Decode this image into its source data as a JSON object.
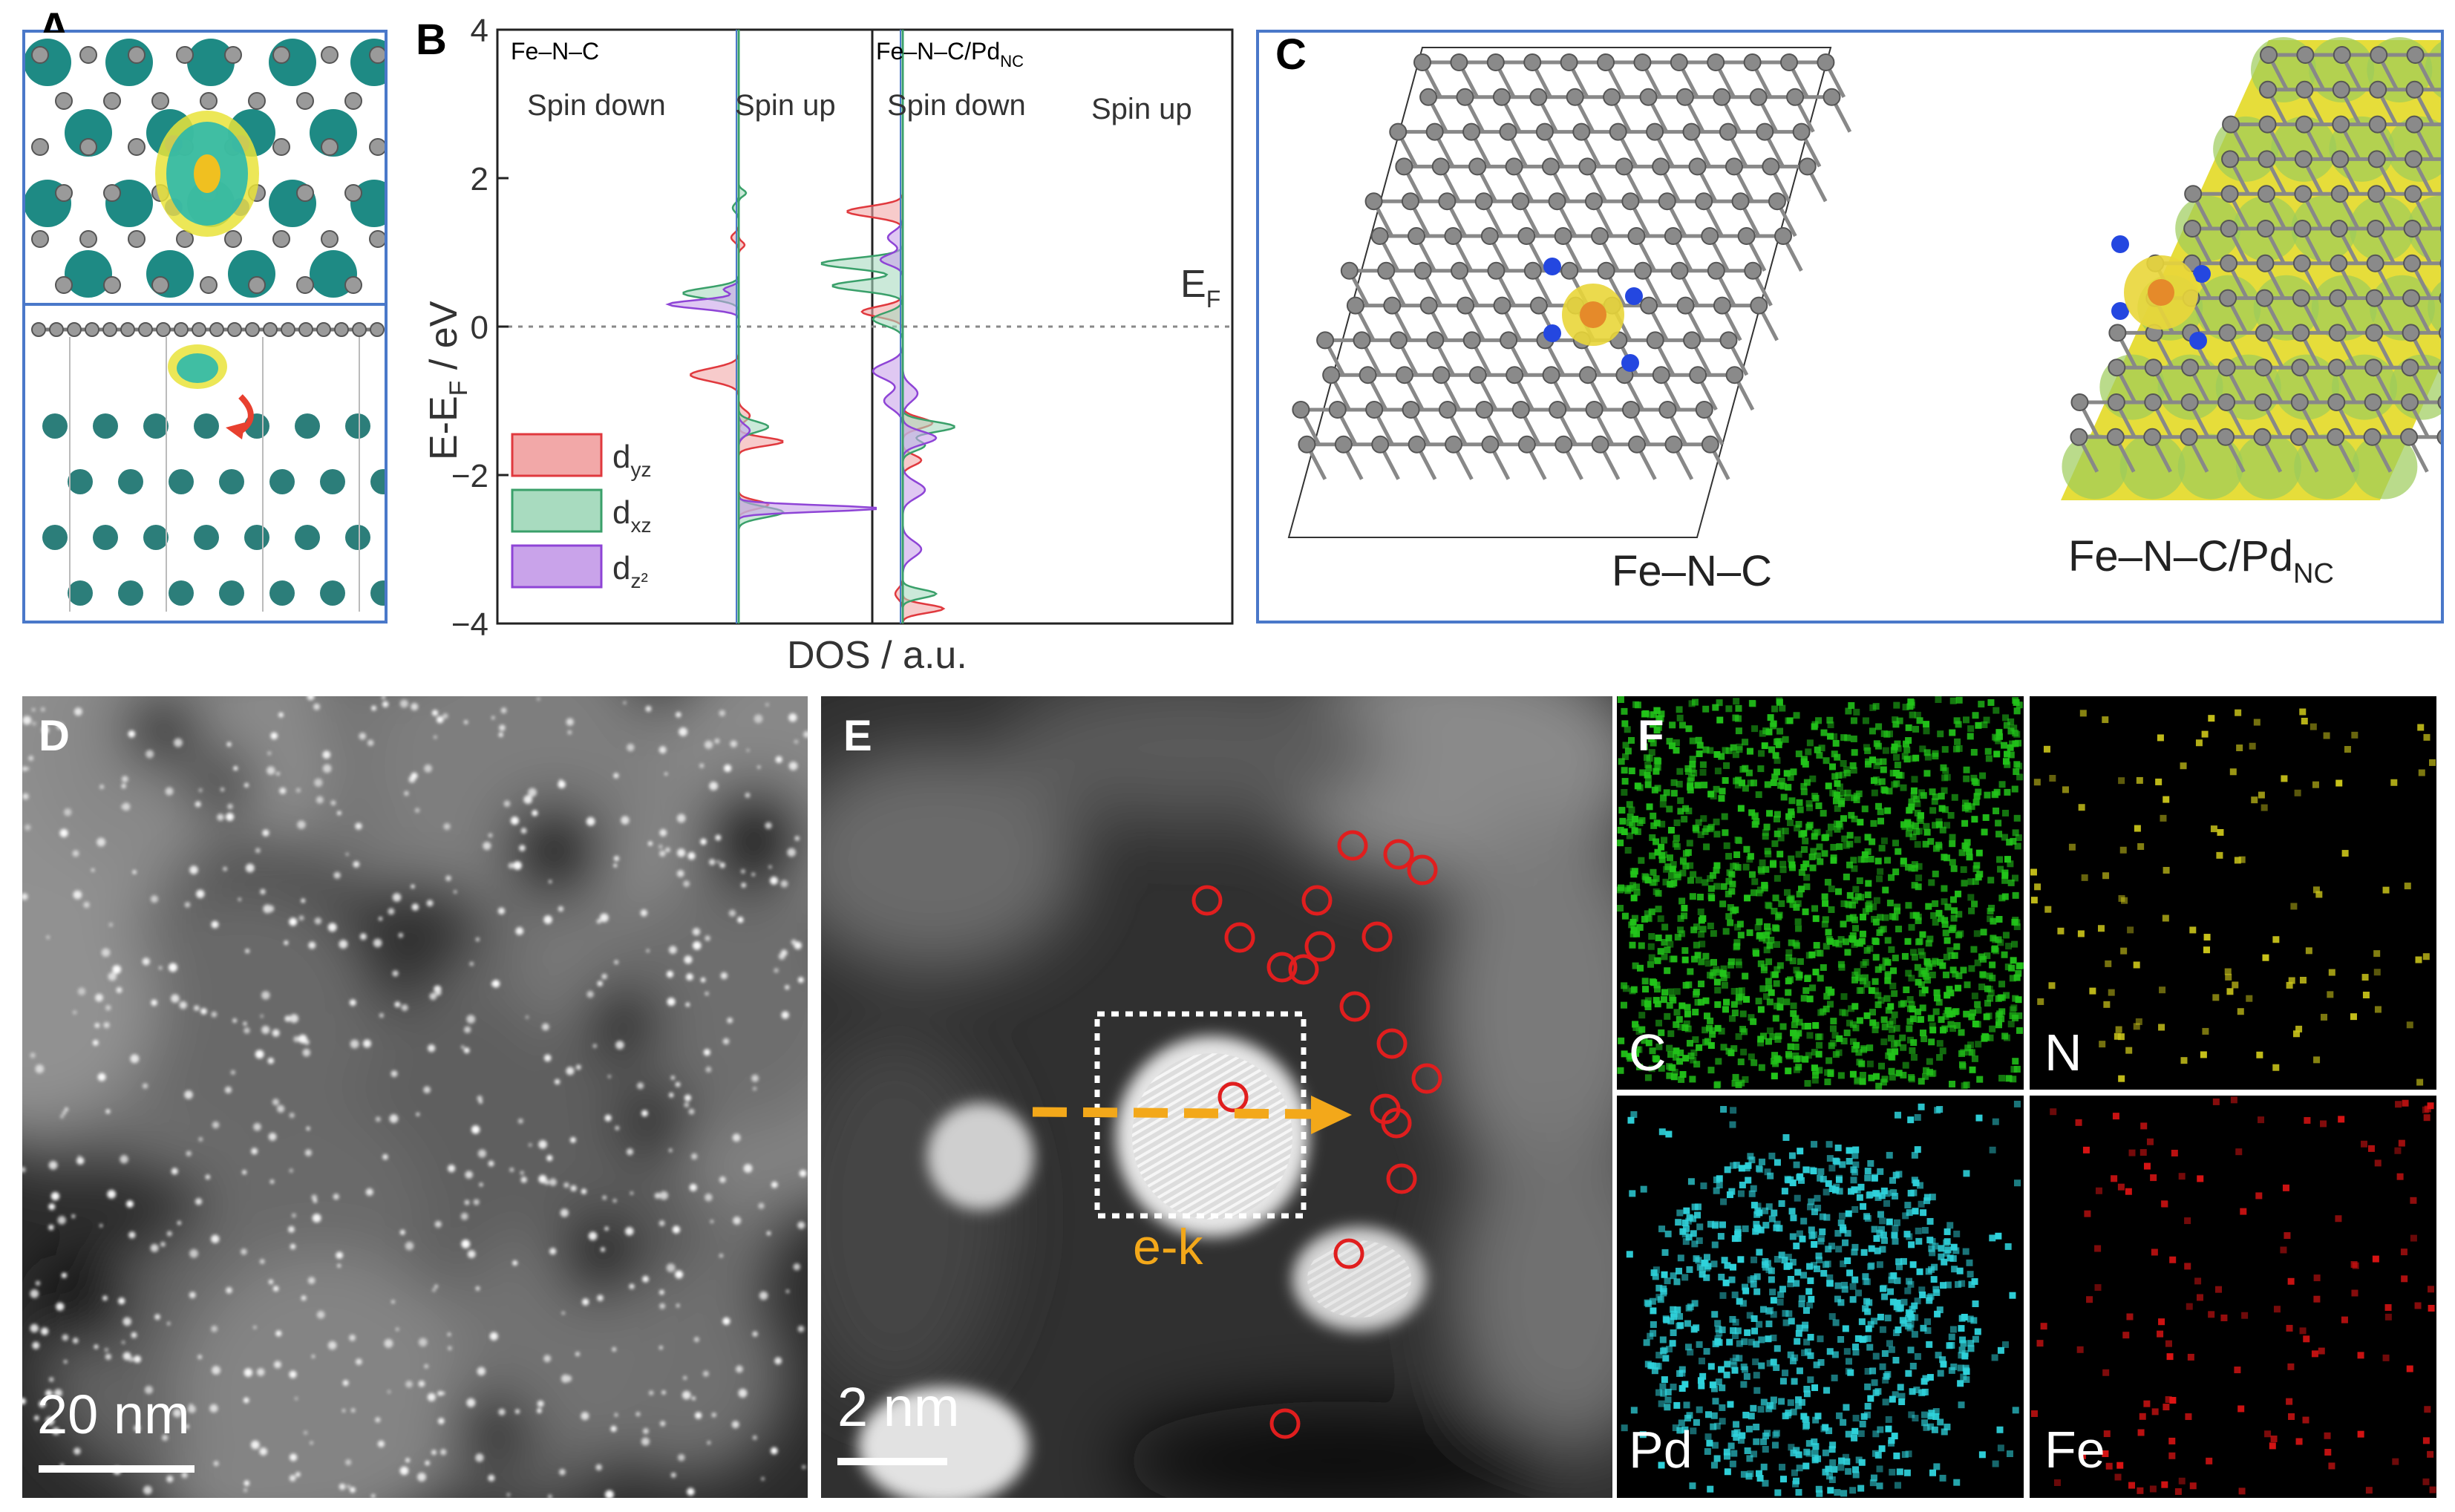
{
  "panels": {
    "a": {
      "letter": "A"
    },
    "b": {
      "letter": "B"
    },
    "c": {
      "letter": "C"
    },
    "d": {
      "letter": "D"
    },
    "e": {
      "letter": "E"
    },
    "f": {
      "letter": "F"
    }
  },
  "panel_b": {
    "left_title": "Fe–N–C",
    "right_title_main": "Fe–N–C/Pd",
    "right_title_sub": "NC",
    "left_spin_down": "Spin down",
    "left_spin_up": "Spin up",
    "right_spin_down": "Spin down",
    "right_spin_up": "Spin up",
    "fermi_label_main": "E",
    "fermi_label_sub": "F",
    "ylabel_pre": "E-E",
    "ylabel_sub": "F",
    "ylabel_post": " / eV",
    "xlabel": "DOS / a.u.",
    "yticks": [
      "4",
      "2",
      "0",
      "−2",
      "−4"
    ],
    "legend": [
      {
        "main": "d",
        "sub": "yz",
        "color": "#f2a8a8",
        "stroke": "#e0393e"
      },
      {
        "main": "d",
        "sub": "xz",
        "color": "#a8dbbf",
        "stroke": "#3aa06a"
      },
      {
        "main": "d",
        "sub": "z²",
        "color": "#c9a3ea",
        "stroke": "#8e44d6"
      }
    ]
  },
  "panel_c": {
    "label_left": "Fe–N–C",
    "label_right_main": "Fe–N–C/Pd",
    "label_right_sub": "NC"
  },
  "panel_d": {
    "scale": "20 nm"
  },
  "panel_e": {
    "scale": "2 nm",
    "arrow_label": "e-k"
  },
  "panel_f": {
    "maps": [
      {
        "element": "C",
        "color": "#22c41a"
      },
      {
        "element": "N",
        "color": "#c8c21a"
      },
      {
        "element": "Pd",
        "color": "#2fd3dc"
      },
      {
        "element": "Fe",
        "color": "#e01414"
      }
    ]
  },
  "chart_data": {
    "type": "area",
    "title": "",
    "xlabel": "DOS / a.u.",
    "ylabel": "E-EF / eV",
    "ylim": [
      -4,
      4
    ],
    "subplots": [
      "Fe–N–C",
      "Fe–N–C/PdNC"
    ],
    "series": [
      {
        "name": "dyz",
        "subplot": "Fe–N–C",
        "peaks_spin_down_eV": [
          -0.65
        ],
        "peaks_spin_up_eV": [
          1.1,
          -1.55,
          -2.4
        ]
      },
      {
        "name": "dxz",
        "subplot": "Fe–N–C",
        "peaks_spin_down_eV": [
          0.45
        ],
        "peaks_spin_up_eV": [
          1.8,
          -1.35,
          -2.5
        ]
      },
      {
        "name": "dz2",
        "subplot": "Fe–N–C",
        "peaks_spin_down_eV": [
          0.3
        ],
        "peaks_spin_up_eV": [
          -2.45
        ]
      },
      {
        "name": "dyz",
        "subplot": "Fe–N–C/PdNC",
        "peaks_spin_down_eV": [
          1.55,
          0.2
        ],
        "peaks_spin_up_eV": [
          -1.3,
          -3.8
        ]
      },
      {
        "name": "dxz",
        "subplot": "Fe–N–C/PdNC",
        "peaks_spin_down_eV": [
          0.85,
          0.55
        ],
        "peaks_spin_up_eV": [
          -1.35,
          -3.6
        ]
      },
      {
        "name": "dz2",
        "subplot": "Fe–N–C/PdNC",
        "peaks_spin_down_eV": [
          1.2,
          -0.6,
          -1.0
        ],
        "peaks_spin_up_eV": [
          -1.5,
          -2.2,
          -3.0
        ]
      }
    ]
  }
}
